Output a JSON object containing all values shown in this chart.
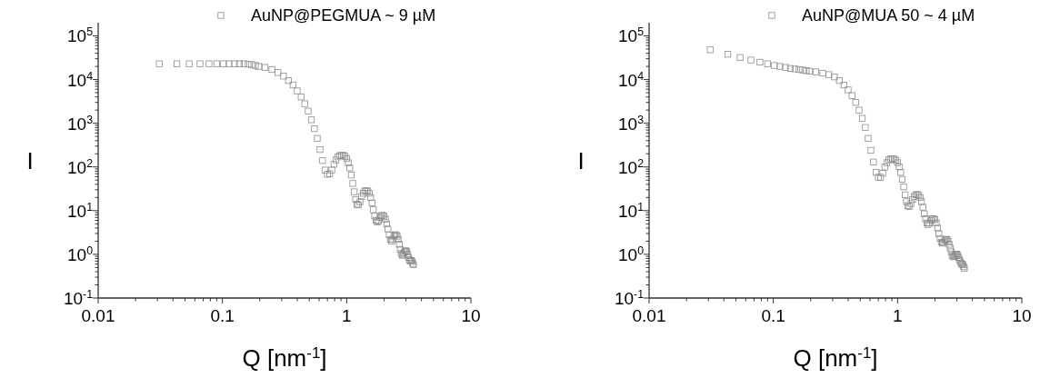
{
  "chart_data": [
    {
      "type": "scatter",
      "xlabel": "Q [nm$^{-1}$]",
      "ylabel": "I",
      "log": "xy",
      "marker": "square",
      "legend": "top right",
      "grid": false,
      "xlim": [
        0.01,
        10
      ],
      "ylim": [
        0.1,
        200000
      ],
      "xticks": [
        0.01,
        {
          "value": 0.02,
          "label": null
        },
        {
          "value": 0.03,
          "label": null
        },
        {
          "value": 0.04,
          "label": null
        },
        {
          "value": 0.05,
          "label": null
        },
        {
          "value": 0.06,
          "label": null
        },
        {
          "value": 0.07,
          "label": null
        },
        {
          "value": 0.08,
          "label": null
        },
        {
          "value": 0.09,
          "label": null
        },
        0.1,
        {
          "value": 0.2,
          "label": null
        },
        {
          "value": 0.3,
          "label": null
        },
        {
          "value": 0.4,
          "label": null
        },
        {
          "value": 0.5,
          "label": null
        },
        {
          "value": 0.6,
          "label": null
        },
        {
          "value": 0.7,
          "label": null
        },
        {
          "value": 0.8,
          "label": null
        },
        {
          "value": 0.9,
          "label": null
        },
        1,
        {
          "value": 2,
          "label": null
        },
        {
          "value": 3,
          "label": null
        },
        {
          "value": 4,
          "label": null
        },
        {
          "value": 5,
          "label": null
        },
        {
          "value": 6,
          "label": null
        },
        {
          "value": 7,
          "label": null
        },
        {
          "value": 8,
          "label": null
        },
        {
          "value": 9,
          "label": null
        },
        10
      ],
      "yticks": [
        {
          "value": 0.1,
          "label": "10$^{-1}$"
        },
        {
          "value": 0.2,
          "label": null
        },
        {
          "value": 0.3,
          "label": null
        },
        {
          "value": 0.4,
          "label": null
        },
        {
          "value": 0.5,
          "label": null
        },
        {
          "value": 0.6,
          "label": null
        },
        {
          "value": 0.7,
          "label": null
        },
        {
          "value": 0.8,
          "label": null
        },
        {
          "value": 0.9,
          "label": null
        },
        {
          "value": 1,
          "label": "10$^{0}$"
        },
        {
          "value": 2,
          "label": null
        },
        {
          "value": 3,
          "label": null
        },
        {
          "value": 4,
          "label": null
        },
        {
          "value": 5,
          "label": null
        },
        {
          "value": 6,
          "label": null
        },
        {
          "value": 7,
          "label": null
        },
        {
          "value": 8,
          "label": null
        },
        {
          "value": 9,
          "label": null
        },
        {
          "value": 10,
          "label": "10$^{1}$"
        },
        {
          "value": 20,
          "label": null
        },
        {
          "value": 30,
          "label": null
        },
        {
          "value": 40,
          "label": null
        },
        {
          "value": 50,
          "label": null
        },
        {
          "value": 60,
          "label": null
        },
        {
          "value": 70,
          "label": null
        },
        {
          "value": 80,
          "label": null
        },
        {
          "value": 90,
          "label": null
        },
        {
          "value": 100,
          "label": "10$^{2}$"
        },
        {
          "value": 200,
          "label": null
        },
        {
          "value": 300,
          "label": null
        },
        {
          "value": 400,
          "label": null
        },
        {
          "value": 500,
          "label": null
        },
        {
          "value": 600,
          "label": null
        },
        {
          "value": 700,
          "label": null
        },
        {
          "value": 800,
          "label": null
        },
        {
          "value": 900,
          "label": null
        },
        {
          "value": 1000,
          "label": "10$^{3}$"
        },
        {
          "value": 2000,
          "label": null
        },
        {
          "value": 3000,
          "label": null
        },
        {
          "value": 4000,
          "label": null
        },
        {
          "value": 5000,
          "label": null
        },
        {
          "value": 6000,
          "label": null
        },
        {
          "value": 7000,
          "label": null
        },
        {
          "value": 8000,
          "label": null
        },
        {
          "value": 9000,
          "label": null
        },
        {
          "value": 10000,
          "label": "10$^{4}$"
        },
        {
          "value": 20000,
          "label": null
        },
        {
          "value": 30000,
          "label": null
        },
        {
          "value": 40000,
          "label": null
        },
        {
          "value": 50000,
          "label": null
        },
        {
          "value": 60000,
          "label": null
        },
        {
          "value": 70000,
          "label": null
        },
        {
          "value": 80000,
          "label": null
        },
        {
          "value": 90000,
          "label": null
        },
        {
          "value": 100000,
          "label": "10$^{5}$"
        }
      ],
      "series": [
        {
          "name": "AuNP@PEGMUA  ~ 9 µM",
          "color": "#8c8c8c",
          "x": [
            0.031,
            0.043,
            0.054,
            0.066,
            0.078,
            0.09,
            0.102,
            0.113,
            0.125,
            0.137,
            0.149,
            0.161,
            0.172,
            0.184,
            0.196,
            0.22,
            0.25,
            0.28,
            0.31,
            0.34,
            0.37,
            0.4,
            0.43,
            0.46,
            0.49,
            0.52,
            0.55,
            0.58,
            0.61,
            0.64,
            0.67,
            0.7,
            0.73,
            0.76,
            0.79,
            0.82,
            0.85,
            0.88,
            0.91,
            0.94,
            0.97,
            1.0,
            1.03,
            1.06,
            1.09,
            1.12,
            1.15,
            1.18,
            1.21,
            1.24,
            1.28,
            1.32,
            1.36,
            1.4,
            1.44,
            1.48,
            1.52,
            1.56,
            1.6,
            1.64,
            1.68,
            1.72,
            1.76,
            1.8,
            1.85,
            1.9,
            1.95,
            2.0,
            2.05,
            2.1,
            2.15,
            2.2,
            2.25,
            2.3,
            2.35,
            2.4,
            2.45,
            2.5,
            2.55,
            2.6,
            2.65,
            2.7,
            2.75,
            2.8,
            2.85,
            2.9,
            2.95,
            3.0,
            3.05,
            3.1,
            3.15,
            3.2,
            3.25,
            3.3,
            3.35,
            3.4,
            3.45
          ],
          "values": [
            23000,
            23000,
            23000,
            23000,
            23000,
            23000,
            23000,
            23000,
            23000,
            23000,
            23000,
            22500,
            22000,
            21000,
            20000,
            19000,
            17000,
            14500,
            12000,
            9500,
            7500,
            5500,
            4000,
            2800,
            1900,
            1200,
            750,
            450,
            250,
            140,
            85,
            68,
            70,
            85,
            115,
            145,
            170,
            182,
            185,
            185,
            175,
            155,
            125,
            95,
            65,
            42,
            27,
            18,
            14,
            13.5,
            16,
            21,
            25,
            28,
            29,
            28,
            25,
            20,
            15,
            10.5,
            7.5,
            6,
            5.5,
            5.8,
            7,
            7.7,
            7.8,
            7.4,
            6.4,
            5,
            3.8,
            2.8,
            2.2,
            2,
            2.2,
            2.6,
            2.8,
            2.8,
            2.6,
            2.2,
            1.7,
            1.3,
            1.05,
            0.95,
            1,
            1.1,
            1.2,
            1.2,
            1.15,
            1,
            0.85,
            0.75,
            0.7,
            0.72,
            0.7,
            0.62,
            0.58
          ]
        }
      ]
    },
    {
      "type": "scatter",
      "xlabel": "Q [nm$^{-1}$]",
      "ylabel": "I",
      "log": "xy",
      "marker": "square",
      "legend": "top right",
      "grid": false,
      "xlim": [
        0.01,
        10
      ],
      "ylim": [
        0.1,
        200000
      ],
      "xticks": [
        0.01,
        {
          "value": 0.02,
          "label": null
        },
        {
          "value": 0.03,
          "label": null
        },
        {
          "value": 0.04,
          "label": null
        },
        {
          "value": 0.05,
          "label": null
        },
        {
          "value": 0.06,
          "label": null
        },
        {
          "value": 0.07,
          "label": null
        },
        {
          "value": 0.08,
          "label": null
        },
        {
          "value": 0.09,
          "label": null
        },
        0.1,
        {
          "value": 0.2,
          "label": null
        },
        {
          "value": 0.3,
          "label": null
        },
        {
          "value": 0.4,
          "label": null
        },
        {
          "value": 0.5,
          "label": null
        },
        {
          "value": 0.6,
          "label": null
        },
        {
          "value": 0.7,
          "label": null
        },
        {
          "value": 0.8,
          "label": null
        },
        {
          "value": 0.9,
          "label": null
        },
        1,
        {
          "value": 2,
          "label": null
        },
        {
          "value": 3,
          "label": null
        },
        {
          "value": 4,
          "label": null
        },
        {
          "value": 5,
          "label": null
        },
        {
          "value": 6,
          "label": null
        },
        {
          "value": 7,
          "label": null
        },
        {
          "value": 8,
          "label": null
        },
        {
          "value": 9,
          "label": null
        },
        10
      ],
      "yticks": [
        {
          "value": 0.1,
          "label": "10$^{-1}$"
        },
        {
          "value": 0.2,
          "label": null
        },
        {
          "value": 0.3,
          "label": null
        },
        {
          "value": 0.4,
          "label": null
        },
        {
          "value": 0.5,
          "label": null
        },
        {
          "value": 0.6,
          "label": null
        },
        {
          "value": 0.7,
          "label": null
        },
        {
          "value": 0.8,
          "label": null
        },
        {
          "value": 0.9,
          "label": null
        },
        {
          "value": 1,
          "label": "10$^{0}$"
        },
        {
          "value": 2,
          "label": null
        },
        {
          "value": 3,
          "label": null
        },
        {
          "value": 4,
          "label": null
        },
        {
          "value": 5,
          "label": null
        },
        {
          "value": 6,
          "label": null
        },
        {
          "value": 7,
          "label": null
        },
        {
          "value": 8,
          "label": null
        },
        {
          "value": 9,
          "label": null
        },
        {
          "value": 10,
          "label": "10$^{1}$"
        },
        {
          "value": 20,
          "label": null
        },
        {
          "value": 30,
          "label": null
        },
        {
          "value": 40,
          "label": null
        },
        {
          "value": 50,
          "label": null
        },
        {
          "value": 60,
          "label": null
        },
        {
          "value": 70,
          "label": null
        },
        {
          "value": 80,
          "label": null
        },
        {
          "value": 90,
          "label": null
        },
        {
          "value": 100,
          "label": "10$^{2}$"
        },
        {
          "value": 200,
          "label": null
        },
        {
          "value": 300,
          "label": null
        },
        {
          "value": 400,
          "label": null
        },
        {
          "value": 500,
          "label": null
        },
        {
          "value": 600,
          "label": null
        },
        {
          "value": 700,
          "label": null
        },
        {
          "value": 800,
          "label": null
        },
        {
          "value": 900,
          "label": null
        },
        {
          "value": 1000,
          "label": "10$^{3}$"
        },
        {
          "value": 2000,
          "label": null
        },
        {
          "value": 3000,
          "label": null
        },
        {
          "value": 4000,
          "label": null
        },
        {
          "value": 5000,
          "label": null
        },
        {
          "value": 6000,
          "label": null
        },
        {
          "value": 7000,
          "label": null
        },
        {
          "value": 8000,
          "label": null
        },
        {
          "value": 9000,
          "label": null
        },
        {
          "value": 10000,
          "label": "10$^{4}$"
        },
        {
          "value": 20000,
          "label": null
        },
        {
          "value": 30000,
          "label": null
        },
        {
          "value": 40000,
          "label": null
        },
        {
          "value": 50000,
          "label": null
        },
        {
          "value": 60000,
          "label": null
        },
        {
          "value": 70000,
          "label": null
        },
        {
          "value": 80000,
          "label": null
        },
        {
          "value": 90000,
          "label": null
        },
        {
          "value": 100000,
          "label": "10$^{5}$"
        }
      ],
      "series": [
        {
          "name": "AuNP@MUA 50 ~ 4 µM",
          "color": "#8c8c8c",
          "x": [
            0.031,
            0.043,
            0.054,
            0.066,
            0.078,
            0.09,
            0.102,
            0.113,
            0.125,
            0.137,
            0.149,
            0.161,
            0.172,
            0.184,
            0.196,
            0.22,
            0.25,
            0.28,
            0.31,
            0.34,
            0.37,
            0.4,
            0.43,
            0.46,
            0.49,
            0.52,
            0.55,
            0.58,
            0.61,
            0.64,
            0.67,
            0.7,
            0.73,
            0.76,
            0.79,
            0.82,
            0.85,
            0.88,
            0.91,
            0.94,
            0.97,
            1.0,
            1.03,
            1.06,
            1.09,
            1.12,
            1.15,
            1.18,
            1.21,
            1.24,
            1.28,
            1.32,
            1.36,
            1.4,
            1.44,
            1.48,
            1.52,
            1.56,
            1.6,
            1.64,
            1.68,
            1.72,
            1.76,
            1.8,
            1.85,
            1.9,
            1.95,
            2.0,
            2.05,
            2.1,
            2.15,
            2.2,
            2.25,
            2.3,
            2.35,
            2.4,
            2.45,
            2.5,
            2.55,
            2.6,
            2.65,
            2.7,
            2.75,
            2.8,
            2.85,
            2.9,
            2.95,
            3.0,
            3.05,
            3.1,
            3.15,
            3.2,
            3.25,
            3.3,
            3.35,
            3.4,
            3.45
          ],
          "values": [
            48000,
            38000,
            32000,
            28000,
            25000,
            23000,
            21000,
            20000,
            19000,
            18000,
            17500,
            17000,
            16500,
            16000,
            15500,
            15000,
            14000,
            13000,
            11500,
            9500,
            7500,
            5800,
            4300,
            3000,
            2000,
            1300,
            800,
            450,
            240,
            130,
            75,
            58,
            58,
            72,
            100,
            125,
            145,
            152,
            155,
            152,
            142,
            125,
            100,
            75,
            52,
            35,
            23,
            16,
            13,
            12.5,
            14.5,
            18,
            21,
            23,
            23.5,
            22.5,
            20,
            16,
            12,
            8.5,
            6.5,
            5.2,
            4.8,
            5.2,
            6,
            6.5,
            6.5,
            6.2,
            5.2,
            4,
            3,
            2.3,
            1.9,
            1.8,
            1.9,
            2.1,
            2.2,
            2.2,
            2,
            1.7,
            1.4,
            1.15,
            0.95,
            0.88,
            0.9,
            0.95,
            1,
            1,
            0.95,
            0.85,
            0.75,
            0.68,
            0.62,
            0.6,
            0.58,
            0.52,
            0.48
          ]
        }
      ]
    }
  ]
}
